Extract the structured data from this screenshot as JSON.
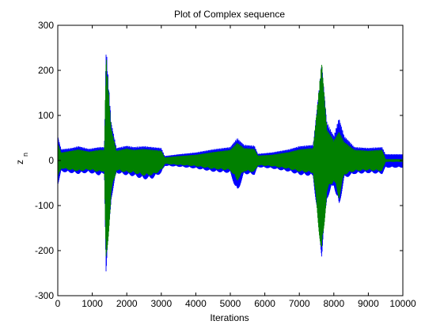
{
  "chart_data": {
    "type": "line",
    "title": "Plot of Complex sequence",
    "xlabel": "Iterations",
    "ylabel_main": "z",
    "ylabel_sub": "n",
    "xlim": [
      0,
      10000
    ],
    "ylim": [
      -300,
      300
    ],
    "xticks": [
      0,
      1000,
      2000,
      3000,
      4000,
      5000,
      6000,
      7000,
      8000,
      9000,
      10000
    ],
    "xtick_labels": [
      "0",
      "1000",
      "2000",
      "3000",
      "4000",
      "5000",
      "6000",
      "7000",
      "8000",
      "9000",
      "10000"
    ],
    "yticks": [
      -300,
      -200,
      -100,
      0,
      100,
      200,
      300
    ],
    "ytick_labels": [
      "-300",
      "-200",
      "-100",
      "0",
      "100",
      "200",
      "300"
    ],
    "grid": false,
    "legend": "none",
    "series": [
      {
        "color": "#0000ff",
        "envelope": [
          {
            "x": 0,
            "upper": 55,
            "lower": -55
          },
          {
            "x": 100,
            "upper": 25,
            "lower": -25
          },
          {
            "x": 400,
            "upper": 28,
            "lower": -28
          },
          {
            "x": 600,
            "upper": 32,
            "lower": -30
          },
          {
            "x": 900,
            "upper": 26,
            "lower": -27
          },
          {
            "x": 1200,
            "upper": 30,
            "lower": -33
          },
          {
            "x": 1350,
            "upper": 30,
            "lower": -30
          },
          {
            "x": 1400,
            "upper": 255,
            "lower": -255
          },
          {
            "x": 1550,
            "upper": 85,
            "lower": -85
          },
          {
            "x": 1700,
            "upper": 28,
            "lower": -28
          },
          {
            "x": 2000,
            "upper": 33,
            "lower": -33
          },
          {
            "x": 2200,
            "upper": 30,
            "lower": -35
          },
          {
            "x": 2500,
            "upper": 32,
            "lower": -42
          },
          {
            "x": 2750,
            "upper": 30,
            "lower": -40
          },
          {
            "x": 3000,
            "upper": 28,
            "lower": -28
          },
          {
            "x": 3100,
            "upper": 10,
            "lower": -12
          },
          {
            "x": 3500,
            "upper": 14,
            "lower": -14
          },
          {
            "x": 4000,
            "upper": 18,
            "lower": -18
          },
          {
            "x": 4500,
            "upper": 25,
            "lower": -25
          },
          {
            "x": 5000,
            "upper": 30,
            "lower": -28
          },
          {
            "x": 5200,
            "upper": 50,
            "lower": -72
          },
          {
            "x": 5400,
            "upper": 35,
            "lower": -30
          },
          {
            "x": 5700,
            "upper": 33,
            "lower": -32
          },
          {
            "x": 5800,
            "upper": 15,
            "lower": -15
          },
          {
            "x": 6200,
            "upper": 18,
            "lower": -18
          },
          {
            "x": 6700,
            "upper": 25,
            "lower": -25
          },
          {
            "x": 7000,
            "upper": 32,
            "lower": -32
          },
          {
            "x": 7400,
            "upper": 35,
            "lower": -35
          },
          {
            "x": 7650,
            "upper": 215,
            "lower": -215
          },
          {
            "x": 7800,
            "upper": 85,
            "lower": -85
          },
          {
            "x": 8000,
            "upper": 55,
            "lower": -55
          },
          {
            "x": 8150,
            "upper": 95,
            "lower": -105
          },
          {
            "x": 8300,
            "upper": 55,
            "lower": -40
          },
          {
            "x": 8600,
            "upper": 30,
            "lower": -30
          },
          {
            "x": 9000,
            "upper": 28,
            "lower": -28
          },
          {
            "x": 9400,
            "upper": 30,
            "lower": -30
          },
          {
            "x": 9500,
            "upper": 14,
            "lower": -16
          },
          {
            "x": 10000,
            "upper": 14,
            "lower": -16
          }
        ]
      },
      {
        "color": "#008000",
        "envelope": [
          {
            "x": 0,
            "upper": 40,
            "lower": -40
          },
          {
            "x": 100,
            "upper": 18,
            "lower": -18
          },
          {
            "x": 400,
            "upper": 22,
            "lower": -22
          },
          {
            "x": 600,
            "upper": 25,
            "lower": -24
          },
          {
            "x": 900,
            "upper": 20,
            "lower": -21
          },
          {
            "x": 1200,
            "upper": 24,
            "lower": -26
          },
          {
            "x": 1350,
            "upper": 24,
            "lower": -24
          },
          {
            "x": 1400,
            "upper": 235,
            "lower": -258
          },
          {
            "x": 1550,
            "upper": 72,
            "lower": -72
          },
          {
            "x": 1700,
            "upper": 22,
            "lower": -22
          },
          {
            "x": 2000,
            "upper": 27,
            "lower": -27
          },
          {
            "x": 2200,
            "upper": 24,
            "lower": -28
          },
          {
            "x": 2500,
            "upper": 26,
            "lower": -34
          },
          {
            "x": 2750,
            "upper": 24,
            "lower": -33
          },
          {
            "x": 3000,
            "upper": 22,
            "lower": -22
          },
          {
            "x": 3100,
            "upper": 7,
            "lower": -8
          },
          {
            "x": 3500,
            "upper": 10,
            "lower": -10
          },
          {
            "x": 4000,
            "upper": 13,
            "lower": -13
          },
          {
            "x": 4500,
            "upper": 19,
            "lower": -19
          },
          {
            "x": 5000,
            "upper": 24,
            "lower": -22
          },
          {
            "x": 5200,
            "upper": 40,
            "lower": -45
          },
          {
            "x": 5400,
            "upper": 28,
            "lower": -24
          },
          {
            "x": 5700,
            "upper": 26,
            "lower": -26
          },
          {
            "x": 5800,
            "upper": 11,
            "lower": -11
          },
          {
            "x": 6200,
            "upper": 13,
            "lower": -13
          },
          {
            "x": 6700,
            "upper": 19,
            "lower": -19
          },
          {
            "x": 7000,
            "upper": 25,
            "lower": -25
          },
          {
            "x": 7400,
            "upper": 28,
            "lower": -28
          },
          {
            "x": 7650,
            "upper": 222,
            "lower": -220
          },
          {
            "x": 7800,
            "upper": 70,
            "lower": -70
          },
          {
            "x": 8000,
            "upper": 45,
            "lower": -45
          },
          {
            "x": 8150,
            "upper": 65,
            "lower": -85
          },
          {
            "x": 8300,
            "upper": 42,
            "lower": -32
          },
          {
            "x": 8600,
            "upper": 24,
            "lower": -24
          },
          {
            "x": 9000,
            "upper": 22,
            "lower": -22
          },
          {
            "x": 9400,
            "upper": 24,
            "lower": -24
          },
          {
            "x": 9500,
            "upper": 3,
            "lower": -3
          },
          {
            "x": 10000,
            "upper": 3,
            "lower": -3
          }
        ]
      }
    ]
  }
}
